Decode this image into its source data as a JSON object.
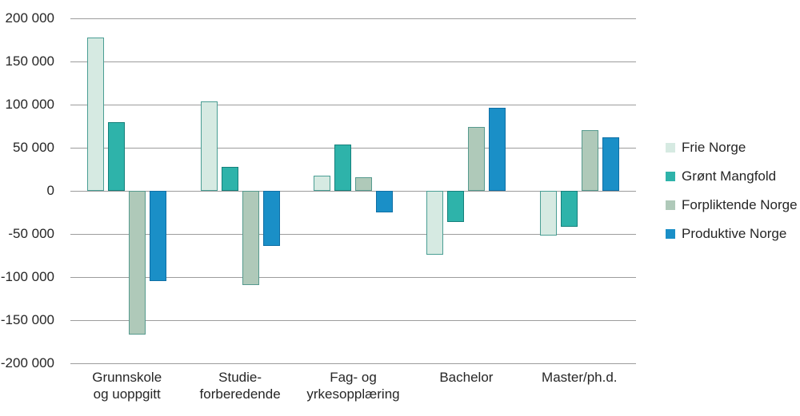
{
  "chart_data": {
    "type": "bar",
    "title": "",
    "xlabel": "",
    "ylabel": "",
    "grid": true,
    "legend_position": "right",
    "background_color": "#ffffff",
    "gridline_color": "#9c9c9c",
    "text_color": "#262626",
    "categories": [
      {
        "lines": [
          "Grunnskole",
          "og uoppgitt"
        ]
      },
      {
        "lines": [
          "Studie-",
          "forberedende"
        ]
      },
      {
        "lines": [
          "Fag- og",
          "yrkesopplæring"
        ]
      },
      {
        "lines": [
          "Bachelor"
        ]
      },
      {
        "lines": [
          "Master/ph.d."
        ]
      }
    ],
    "series": [
      {
        "name": "Frie Norge",
        "fill_color": "#d6eae2",
        "border_color": "#4a9e94",
        "values": [
          178000,
          104000,
          18000,
          -74000,
          -52000
        ]
      },
      {
        "name": "Grønt Mangfold",
        "fill_color": "#2eb3aa",
        "border_color": "#15807b",
        "values": [
          80000,
          28000,
          54000,
          -36000,
          -42000
        ]
      },
      {
        "name": "Forpliktende Norge",
        "fill_color": "#afc9b9",
        "border_color": "#569a8e",
        "values": [
          -167000,
          -109000,
          16000,
          74000,
          70000
        ]
      },
      {
        "name": "Produktive Norge",
        "fill_color": "#1a8fc7",
        "border_color": "#0f6fa5",
        "values": [
          -105000,
          -64000,
          -25000,
          96000,
          62000
        ]
      }
    ],
    "y_axis": {
      "min": -200000,
      "max": 200000,
      "step": 50000,
      "tick_labels_top_to_bottom": [
        "200 000",
        "150 000",
        "100 000",
        "50 000",
        "0",
        "-50 000",
        "-100 000",
        "-150 000",
        "-200 000"
      ]
    }
  }
}
